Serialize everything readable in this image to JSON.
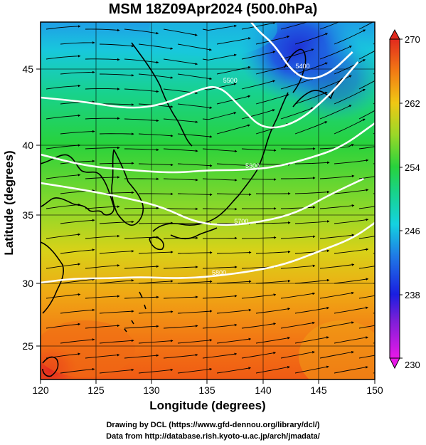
{
  "title": "MSM 18Z09Apr2024 (500.0hPa)",
  "xlabel": "Longitude (degrees)",
  "ylabel": "Latitude  (degrees)",
  "x_ticks": [
    "120",
    "125",
    "130",
    "135",
    "140",
    "145",
    "150"
  ],
  "y_ticks": [
    "25",
    "30",
    "35",
    "40",
    "45"
  ],
  "colorbar_ticks": [
    "270",
    "262",
    "254",
    "246",
    "238",
    "230"
  ],
  "contour_labels": [
    "5400",
    "5500",
    "5600",
    "5700",
    "5800"
  ],
  "credits": {
    "line1": "Drawing by DCL (https://www.gfd-dennou.org/library/dcl/)",
    "line2": "Data from http://database.rish.kyoto-u.ac.jp/arch/jmadata/"
  },
  "colors": {
    "cold": "#1f2fd6",
    "cyan": "#14c8e6",
    "green": "#28d23c",
    "yellow": "#e6d214",
    "orange": "#f27a14",
    "red": "#e22a1e"
  },
  "chart_data": {
    "type": "heatmap",
    "variable": "temperature (K) with wind vectors and geopotential height contours",
    "xlim": [
      120,
      150
    ],
    "ylim": [
      22.5,
      47.6
    ],
    "colorbar_range": [
      230,
      270
    ],
    "colorbar_ticks": [
      230,
      238,
      246,
      254,
      262,
      270
    ],
    "contours": [
      {
        "label": "5400",
        "points": [
          [
            138.5,
            48
          ],
          [
            139.5,
            47
          ],
          [
            141,
            46
          ],
          [
            142.5,
            44.2
          ],
          [
            144,
            43.5
          ],
          [
            146,
            44
          ],
          [
            148,
            45.5
          ]
        ]
      },
      {
        "label": "5500",
        "points": [
          [
            120,
            42.3
          ],
          [
            124,
            42
          ],
          [
            128,
            41.5
          ],
          [
            131,
            41.8
          ],
          [
            134,
            42.8
          ],
          [
            136,
            43.2
          ],
          [
            138,
            41.6
          ],
          [
            140,
            40
          ],
          [
            143,
            40.5
          ],
          [
            146,
            42.5
          ],
          [
            148.5,
            44.8
          ]
        ]
      },
      {
        "label": "5600",
        "points": [
          [
            120,
            38.3
          ],
          [
            124,
            37.5
          ],
          [
            128,
            37.2
          ],
          [
            132,
            37
          ],
          [
            135,
            37.2
          ],
          [
            138,
            37.2
          ],
          [
            141,
            37.4
          ],
          [
            144,
            38
          ],
          [
            147,
            38.8
          ],
          [
            150,
            40.5
          ]
        ]
      },
      {
        "label": "5700",
        "points": [
          [
            120,
            36.3
          ],
          [
            124,
            35.8
          ],
          [
            128,
            35.2
          ],
          [
            131,
            34.6
          ],
          [
            134,
            33.5
          ],
          [
            137,
            33.3
          ],
          [
            140,
            33.6
          ],
          [
            143,
            34.2
          ],
          [
            146,
            35.5
          ],
          [
            149,
            36.6
          ]
        ]
      },
      {
        "label": "5800",
        "points": [
          [
            120,
            29.3
          ],
          [
            123,
            29.6
          ],
          [
            126,
            29.6
          ],
          [
            129,
            29.7
          ],
          [
            132,
            29.6
          ],
          [
            135,
            29.7
          ],
          [
            139,
            30.1
          ],
          [
            142,
            30.6
          ],
          [
            145,
            31.5
          ],
          [
            148,
            32.4
          ],
          [
            150,
            33.5
          ]
        ]
      }
    ]
  }
}
